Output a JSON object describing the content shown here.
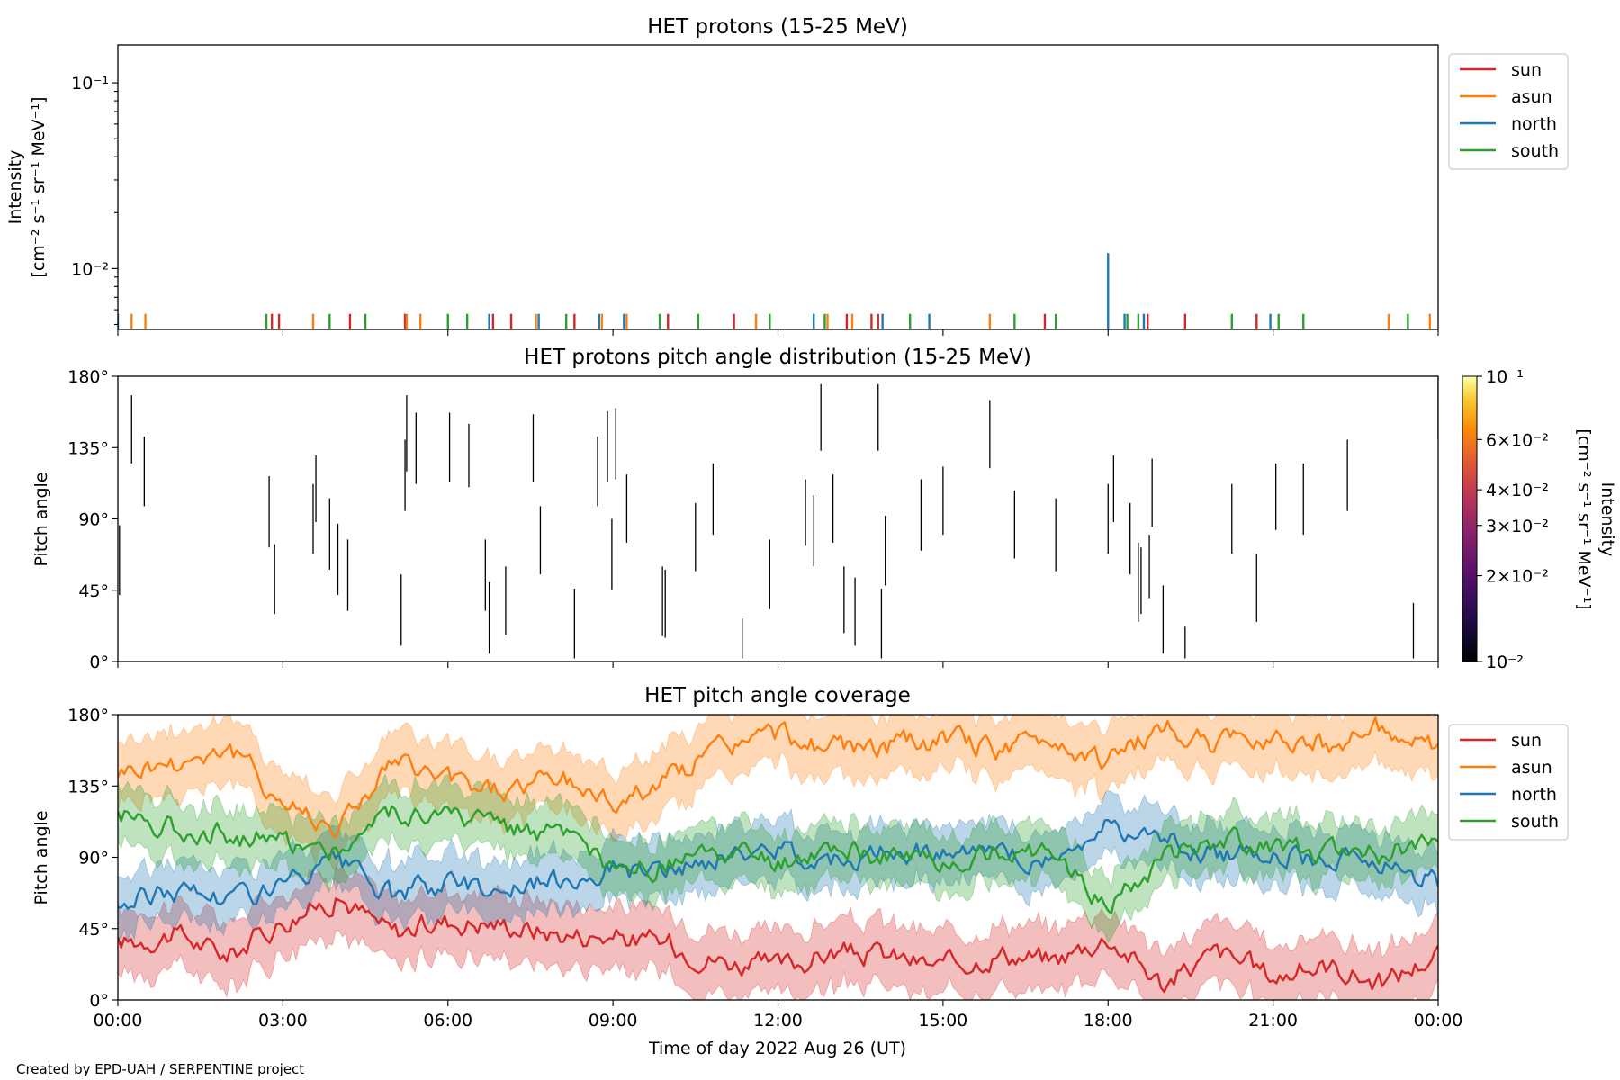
{
  "credit": "Created by EPD-UAH / SERPENTINE project",
  "colors": {
    "sun": "#d62728",
    "asun": "#ff7f0e",
    "north": "#1f77b4",
    "south": "#2ca02c"
  },
  "chart_data": [
    {
      "type": "line",
      "title": "HET protons (15-25 MeV)",
      "ylabel": [
        "Intensity",
        "[cm⁻² s⁻¹ sr⁻¹ MeV⁻¹]"
      ],
      "xlabel": "",
      "yscale": "log",
      "ylim": [
        0.0047,
        0.16
      ],
      "xlim_hours": [
        0,
        24
      ],
      "yticks": [
        {
          "value": 0.1,
          "label": "10⁻¹"
        },
        {
          "value": 0.01,
          "label": "10⁻²"
        }
      ],
      "legend": {
        "position": "top-right",
        "entries": [
          "sun",
          "asun",
          "north",
          "south"
        ]
      },
      "series": [
        {
          "name": "sun",
          "color": "#d62728",
          "hours": [
            2.8,
            2.93,
            4.22,
            5.22,
            6.82,
            7.15,
            8.3,
            10.0,
            11.2,
            13.25,
            13.7,
            13.82,
            16.85,
            18.72,
            19.4,
            20.7
          ],
          "values": [
            0.0057,
            0.0057,
            0.0057,
            0.0057,
            0.0057,
            0.0057,
            0.0057,
            0.0057,
            0.0057,
            0.0057,
            0.0057,
            0.0057,
            0.0057,
            0.0057,
            0.0057,
            0.0057
          ]
        },
        {
          "name": "asun",
          "color": "#ff7f0e",
          "hours": [
            0.25,
            0.5,
            3.55,
            5.25,
            5.5,
            7.6,
            8.8,
            9.25,
            11.6,
            12.9,
            13.35,
            15.85,
            23.1,
            23.85
          ],
          "values": [
            0.0057,
            0.0057,
            0.0057,
            0.0057,
            0.0057,
            0.0057,
            0.0057,
            0.0057,
            0.0057,
            0.0057,
            0.0057,
            0.0057,
            0.0057,
            0.0057
          ]
        },
        {
          "name": "north",
          "color": "#1f77b4",
          "hours": [
            0.0,
            6.75,
            7.65,
            8.75,
            9.2,
            12.65,
            13.9,
            14.75,
            18.0,
            18.3,
            18.65,
            20.95
          ],
          "values": [
            0.0057,
            0.0057,
            0.0057,
            0.0057,
            0.0057,
            0.0057,
            0.0057,
            0.0057,
            0.0121,
            0.0057,
            0.0057,
            0.0057
          ]
        },
        {
          "name": "south",
          "color": "#2ca02c",
          "hours": [
            2.7,
            3.85,
            4.5,
            6.0,
            6.35,
            8.15,
            9.85,
            10.55,
            11.85,
            12.85,
            14.4,
            16.3,
            17.05,
            18.35,
            18.55,
            20.25,
            21.1,
            21.55,
            23.45
          ],
          "values": [
            0.0057,
            0.0057,
            0.0057,
            0.0057,
            0.0057,
            0.0057,
            0.0057,
            0.0057,
            0.0057,
            0.0057,
            0.0057,
            0.0057,
            0.0057,
            0.0057,
            0.0057,
            0.0057,
            0.0057,
            0.0057,
            0.0057
          ]
        }
      ]
    },
    {
      "type": "heatmap",
      "title": "HET protons pitch angle distribution (15-25 MeV)",
      "ylabel": "Pitch angle",
      "xlabel": "",
      "ylim": [
        0,
        180
      ],
      "xlim_hours": [
        0,
        24
      ],
      "yticks": [
        "0°",
        "45°",
        "90°",
        "135°",
        "180°"
      ],
      "colorbar": {
        "label": [
          "Intensity",
          "[cm⁻² s⁻¹ sr⁻¹ MeV⁻¹]"
        ],
        "scale": "log",
        "range": [
          0.01,
          0.1
        ],
        "colormap": "inferno",
        "ticks": [
          {
            "value": 0.1,
            "label": "10⁻¹"
          },
          {
            "value": 0.06,
            "label": "6×10⁻²"
          },
          {
            "value": 0.04,
            "label": "4×10⁻²"
          },
          {
            "value": 0.03,
            "label": "3×10⁻²"
          },
          {
            "value": 0.02,
            "label": "2×10⁻²"
          },
          {
            "value": 0.01,
            "label": "10⁻²"
          }
        ]
      },
      "segments": [
        [
          0.03,
          42,
          86
        ],
        [
          0.25,
          125,
          168
        ],
        [
          0.48,
          98,
          142
        ],
        [
          2.75,
          72,
          117
        ],
        [
          2.85,
          30,
          74
        ],
        [
          3.55,
          68,
          112
        ],
        [
          3.6,
          88,
          130
        ],
        [
          3.85,
          58,
          103
        ],
        [
          4.0,
          42,
          87
        ],
        [
          4.18,
          32,
          77
        ],
        [
          5.15,
          10,
          55
        ],
        [
          5.22,
          95,
          140
        ],
        [
          5.25,
          120,
          168
        ],
        [
          5.42,
          112,
          157
        ],
        [
          6.03,
          113,
          157
        ],
        [
          6.38,
          110,
          150
        ],
        [
          6.68,
          32,
          77
        ],
        [
          6.75,
          5,
          50
        ],
        [
          7.05,
          17,
          60
        ],
        [
          7.55,
          113,
          156
        ],
        [
          7.68,
          55,
          98
        ],
        [
          8.3,
          2,
          46
        ],
        [
          8.72,
          98,
          142
        ],
        [
          8.9,
          113,
          158
        ],
        [
          9.05,
          115,
          160
        ],
        [
          9.25,
          75,
          118
        ],
        [
          8.98,
          45,
          90
        ],
        [
          9.9,
          16,
          60
        ],
        [
          9.95,
          15,
          58
        ],
        [
          10.5,
          57,
          100
        ],
        [
          10.82,
          80,
          125
        ],
        [
          11.35,
          2,
          27
        ],
        [
          11.85,
          33,
          77
        ],
        [
          12.5,
          73,
          115
        ],
        [
          12.65,
          60,
          105
        ],
        [
          12.78,
          133,
          175
        ],
        [
          13.0,
          75,
          118
        ],
        [
          13.2,
          18,
          60
        ],
        [
          13.4,
          10,
          53
        ],
        [
          13.82,
          133,
          175
        ],
        [
          13.88,
          2,
          46
        ],
        [
          13.95,
          48,
          92
        ],
        [
          14.6,
          70,
          115
        ],
        [
          15.0,
          80,
          123
        ],
        [
          15.85,
          122,
          165
        ],
        [
          16.3,
          65,
          108
        ],
        [
          17.05,
          57,
          103
        ],
        [
          18.0,
          68,
          112
        ],
        [
          18.55,
          25,
          75
        ],
        [
          18.1,
          88,
          130
        ],
        [
          18.4,
          55,
          100
        ],
        [
          18.6,
          30,
          72
        ],
        [
          18.75,
          40,
          80
        ],
        [
          18.8,
          85,
          128
        ],
        [
          19.0,
          5,
          48
        ],
        [
          19.4,
          2,
          22
        ],
        [
          20.25,
          68,
          112
        ],
        [
          20.7,
          25,
          68
        ],
        [
          21.05,
          83,
          125
        ],
        [
          21.55,
          80,
          125
        ],
        [
          22.35,
          95,
          140
        ],
        [
          23.55,
          2,
          37
        ],
        [
          24.0,
          140,
          180
        ]
      ]
    },
    {
      "type": "area",
      "title": "HET pitch angle coverage",
      "ylabel": "Pitch angle",
      "xlabel": "Time of day 2022 Aug 26 (UT)",
      "ylim": [
        0,
        180
      ],
      "xlim_hours": [
        0,
        24
      ],
      "yticks": [
        "0°",
        "45°",
        "90°",
        "135°",
        "180°"
      ],
      "xticks": [
        "00:00",
        "03:00",
        "06:00",
        "09:00",
        "12:00",
        "15:00",
        "18:00",
        "21:00",
        "00:00"
      ],
      "legend": {
        "position": "top-right",
        "entries": [
          "sun",
          "asun",
          "north",
          "south"
        ]
      },
      "series": [
        {
          "name": "sun",
          "color": "#d62728",
          "hours": [
            0,
            1,
            2,
            3,
            4,
            5,
            6,
            7,
            8,
            9,
            10,
            11,
            12,
            13,
            14,
            15,
            16,
            17,
            18,
            19,
            20,
            21,
            22,
            23,
            24
          ],
          "center": [
            35,
            42,
            28,
            50,
            65,
            42,
            50,
            48,
            42,
            40,
            35,
            25,
            20,
            30,
            28,
            20,
            30,
            25,
            40,
            10,
            30,
            15,
            22,
            10,
            30
          ],
          "halfwidth": 20
        },
        {
          "name": "asun",
          "color": "#ff7f0e",
          "hours": [
            0,
            1,
            2,
            3,
            4,
            5,
            6,
            7,
            8,
            9,
            10,
            11,
            12,
            13,
            14,
            15,
            16,
            17,
            18,
            19,
            20,
            21,
            22,
            23,
            24
          ],
          "center": [
            145,
            150,
            160,
            125,
            110,
            150,
            138,
            132,
            140,
            125,
            140,
            160,
            168,
            158,
            160,
            165,
            158,
            165,
            150,
            172,
            160,
            168,
            162,
            172,
            155
          ],
          "halfwidth": 20
        },
        {
          "name": "north",
          "color": "#1f77b4",
          "hours": [
            0,
            1,
            2,
            3,
            4,
            5,
            6,
            7,
            8,
            9,
            10,
            11,
            12,
            13,
            14,
            15,
            16,
            17,
            18,
            19,
            20,
            21,
            22,
            23,
            24
          ],
          "center": [
            60,
            70,
            65,
            72,
            85,
            65,
            75,
            70,
            75,
            85,
            80,
            90,
            95,
            90,
            92,
            95,
            90,
            88,
            110,
            100,
            90,
            95,
            88,
            88,
            75
          ],
          "halfwidth": 18
        },
        {
          "name": "south",
          "color": "#2ca02c",
          "hours": [
            0,
            1,
            2,
            3,
            4,
            5,
            6,
            7,
            8,
            9,
            10,
            11,
            12,
            13,
            14,
            15,
            16,
            17,
            18,
            19,
            20,
            21,
            22,
            23,
            24
          ],
          "center": [
            118,
            110,
            105,
            100,
            95,
            120,
            115,
            110,
            105,
            80,
            85,
            92,
            85,
            95,
            90,
            85,
            95,
            95,
            60,
            90,
            100,
            95,
            95,
            90,
            105
          ],
          "halfwidth": 18
        }
      ]
    }
  ]
}
